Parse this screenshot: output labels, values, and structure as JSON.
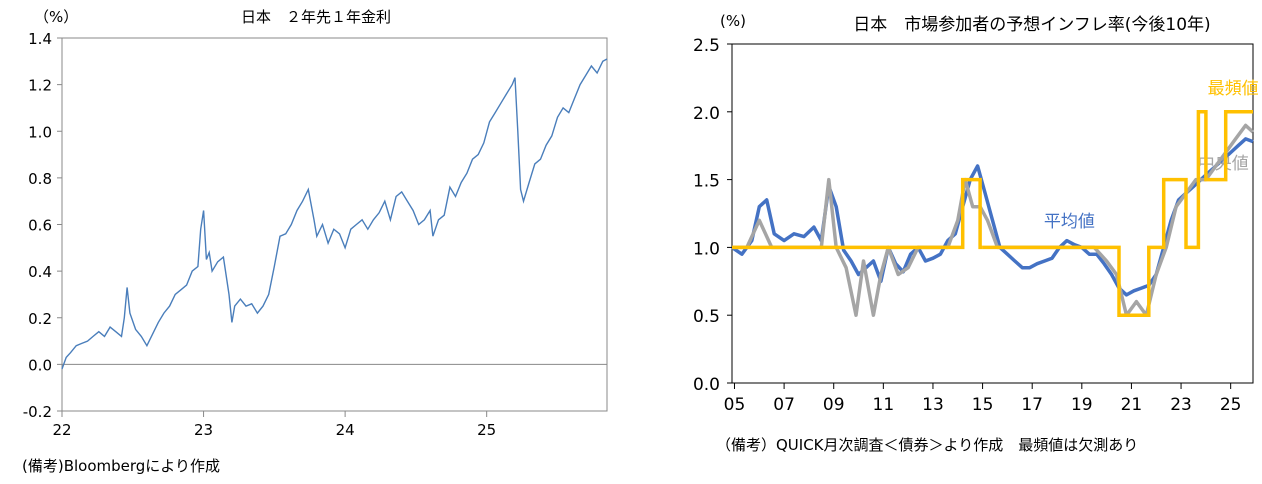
{
  "chart_data": [
    {
      "type": "line",
      "title": "日本　２年先１年金利",
      "unit_label": "（%）",
      "note": "(備考)Bloombergにより作成",
      "ylim": [
        -0.2,
        1.4
      ],
      "y_ticks": [
        "-0.2",
        "0.0",
        "0.2",
        "0.4",
        "0.6",
        "0.8",
        "1.0",
        "1.2",
        "1.4"
      ],
      "x_ticks": [
        "22",
        "23",
        "24",
        "25"
      ],
      "xlim": [
        2022.0,
        2025.85
      ],
      "zero_line": true,
      "line_color": "#4a7ebb",
      "series": [
        {
          "x": [
            2022.0,
            2022.03,
            2022.06,
            2022.1,
            2022.14,
            2022.18,
            2022.22,
            2022.26,
            2022.3,
            2022.34,
            2022.38,
            2022.42,
            2022.44,
            2022.46,
            2022.48,
            2022.52,
            2022.56,
            2022.6,
            2022.64,
            2022.68,
            2022.72,
            2022.76,
            2022.8,
            2022.84,
            2022.88,
            2022.92,
            2022.96,
            2022.98,
            2023.0,
            2023.02,
            2023.04,
            2023.06,
            2023.1,
            2023.14,
            2023.18,
            2023.2,
            2023.22,
            2023.26,
            2023.3,
            2023.34,
            2023.38,
            2023.42,
            2023.46,
            2023.5,
            2023.54,
            2023.58,
            2023.62,
            2023.66,
            2023.7,
            2023.74,
            2023.78,
            2023.8,
            2023.84,
            2023.88,
            2023.92,
            2023.96,
            2024.0,
            2024.04,
            2024.08,
            2024.12,
            2024.16,
            2024.2,
            2024.24,
            2024.28,
            2024.32,
            2024.36,
            2024.4,
            2024.44,
            2024.48,
            2024.52,
            2024.56,
            2024.6,
            2024.62,
            2024.66,
            2024.7,
            2024.74,
            2024.78,
            2024.82,
            2024.86,
            2024.9,
            2024.94,
            2024.98,
            2025.02,
            2025.06,
            2025.1,
            2025.14,
            2025.18,
            2025.2,
            2025.22,
            2025.24,
            2025.26,
            2025.3,
            2025.34,
            2025.38,
            2025.42,
            2025.46,
            2025.5,
            2025.54,
            2025.58,
            2025.62,
            2025.66,
            2025.7,
            2025.74,
            2025.78,
            2025.82,
            2025.85
          ],
          "y": [
            -0.02,
            0.03,
            0.05,
            0.08,
            0.09,
            0.1,
            0.12,
            0.14,
            0.12,
            0.16,
            0.14,
            0.12,
            0.2,
            0.33,
            0.22,
            0.15,
            0.12,
            0.08,
            0.13,
            0.18,
            0.22,
            0.25,
            0.3,
            0.32,
            0.34,
            0.4,
            0.42,
            0.58,
            0.66,
            0.45,
            0.48,
            0.4,
            0.44,
            0.46,
            0.3,
            0.18,
            0.25,
            0.28,
            0.25,
            0.26,
            0.22,
            0.25,
            0.3,
            0.42,
            0.55,
            0.56,
            0.6,
            0.66,
            0.7,
            0.75,
            0.62,
            0.55,
            0.6,
            0.52,
            0.58,
            0.56,
            0.5,
            0.58,
            0.6,
            0.62,
            0.58,
            0.62,
            0.65,
            0.7,
            0.62,
            0.72,
            0.74,
            0.7,
            0.66,
            0.6,
            0.62,
            0.66,
            0.55,
            0.62,
            0.64,
            0.76,
            0.72,
            0.78,
            0.82,
            0.88,
            0.9,
            0.95,
            1.04,
            1.08,
            1.12,
            1.16,
            1.2,
            1.23,
            1.0,
            0.75,
            0.7,
            0.78,
            0.86,
            0.88,
            0.94,
            0.98,
            1.06,
            1.1,
            1.08,
            1.14,
            1.2,
            1.24,
            1.28,
            1.25,
            1.3,
            1.31
          ]
        }
      ]
    },
    {
      "type": "line",
      "title": "日本　市場参加者の予想インフレ率(今後10年)",
      "unit_label": "(%)",
      "note": "（備考）QUICK月次調査＜債券＞より作成　最頻値は欠測あり",
      "ylim": [
        0.0,
        2.5
      ],
      "y_ticks": [
        "0.0",
        "0.5",
        "1.0",
        "1.5",
        "2.0",
        "2.5"
      ],
      "x_ticks": [
        "05",
        "07",
        "09",
        "11",
        "13",
        "15",
        "17",
        "19",
        "21",
        "23",
        "25"
      ],
      "xlim": [
        2004.9,
        2025.9
      ],
      "series": [
        {
          "name": "平均値",
          "color": "#4472c4",
          "x": [
            2004.9,
            2005.3,
            2005.7,
            2006.0,
            2006.3,
            2006.6,
            2007.0,
            2007.4,
            2007.8,
            2008.2,
            2008.5,
            2008.8,
            2009.1,
            2009.4,
            2009.7,
            2010.0,
            2010.3,
            2010.6,
            2010.9,
            2011.2,
            2011.5,
            2011.8,
            2012.1,
            2012.4,
            2012.7,
            2013.0,
            2013.3,
            2013.6,
            2013.9,
            2014.2,
            2014.5,
            2014.8,
            2015.1,
            2015.4,
            2015.7,
            2016.0,
            2016.3,
            2016.6,
            2016.9,
            2017.2,
            2017.5,
            2017.8,
            2018.1,
            2018.4,
            2018.7,
            2019.0,
            2019.3,
            2019.6,
            2019.9,
            2020.2,
            2020.5,
            2020.8,
            2021.1,
            2021.4,
            2021.7,
            2022.0,
            2022.3,
            2022.6,
            2022.9,
            2023.2,
            2023.5,
            2023.8,
            2024.1,
            2024.4,
            2024.7,
            2025.0,
            2025.3,
            2025.6,
            2025.9
          ],
          "y": [
            1.0,
            0.95,
            1.05,
            1.3,
            1.35,
            1.1,
            1.05,
            1.1,
            1.08,
            1.15,
            1.05,
            1.45,
            1.3,
            0.98,
            0.9,
            0.8,
            0.85,
            0.9,
            0.75,
            1.0,
            0.88,
            0.82,
            0.95,
            1.0,
            0.9,
            0.92,
            0.95,
            1.05,
            1.1,
            1.3,
            1.5,
            1.6,
            1.4,
            1.2,
            1.0,
            0.95,
            0.9,
            0.85,
            0.85,
            0.88,
            0.9,
            0.92,
            1.0,
            1.05,
            1.02,
            1.0,
            0.95,
            0.95,
            0.88,
            0.8,
            0.7,
            0.65,
            0.68,
            0.7,
            0.72,
            0.8,
            1.0,
            1.2,
            1.35,
            1.4,
            1.45,
            1.5,
            1.55,
            1.6,
            1.65,
            1.7,
            1.75,
            1.8,
            1.78
          ]
        },
        {
          "name": "中央値",
          "color": "#a5a5a5",
          "x": [
            2004.9,
            2005.5,
            2006.0,
            2006.5,
            2007.0,
            2007.5,
            2008.0,
            2008.5,
            2008.8,
            2009.1,
            2009.5,
            2009.9,
            2010.2,
            2010.6,
            2010.9,
            2011.2,
            2011.6,
            2012.0,
            2012.4,
            2012.8,
            2013.2,
            2013.6,
            2014.0,
            2014.3,
            2014.6,
            2014.9,
            2015.2,
            2015.6,
            2016.0,
            2016.5,
            2017.0,
            2017.5,
            2018.0,
            2018.5,
            2019.0,
            2019.5,
            2020.0,
            2020.4,
            2020.8,
            2021.2,
            2021.6,
            2022.0,
            2022.4,
            2022.8,
            2023.2,
            2023.6,
            2024.0,
            2024.4,
            2024.8,
            2025.2,
            2025.6,
            2025.9
          ],
          "y": [
            1.0,
            1.0,
            1.2,
            1.0,
            1.0,
            1.0,
            1.0,
            1.0,
            1.5,
            1.0,
            0.85,
            0.5,
            0.9,
            0.5,
            0.8,
            1.0,
            0.8,
            0.85,
            1.0,
            1.0,
            1.0,
            1.0,
            1.2,
            1.5,
            1.3,
            1.3,
            1.2,
            1.0,
            1.0,
            1.0,
            1.0,
            1.0,
            1.0,
            1.0,
            1.0,
            1.0,
            0.9,
            0.8,
            0.5,
            0.6,
            0.5,
            0.8,
            1.0,
            1.3,
            1.4,
            1.5,
            1.5,
            1.6,
            1.7,
            1.8,
            1.9,
            1.85
          ]
        },
        {
          "name": "最頻値",
          "color": "#ffc000",
          "segments": [
            {
              "x": [
                2004.9,
                2014.2,
                2014.2,
                2014.9,
                2014.9,
                2015.0
              ],
              "y": [
                1.0,
                1.0,
                1.5,
                1.5,
                1.0,
                1.0
              ]
            },
            {
              "x": [
                2015.0,
                2020.5,
                2020.5,
                2021.7,
                2021.7,
                2022.3,
                2022.3,
                2023.2,
                2023.2,
                2023.7,
                2023.7,
                2024.0,
                2024.0,
                2024.8,
                2024.8,
                2025.9
              ],
              "y": [
                1.0,
                1.0,
                0.5,
                0.5,
                1.0,
                1.0,
                1.5,
                1.5,
                1.0,
                1.0,
                2.0,
                2.0,
                1.5,
                1.5,
                2.0,
                2.0
              ]
            }
          ]
        }
      ]
    }
  ]
}
